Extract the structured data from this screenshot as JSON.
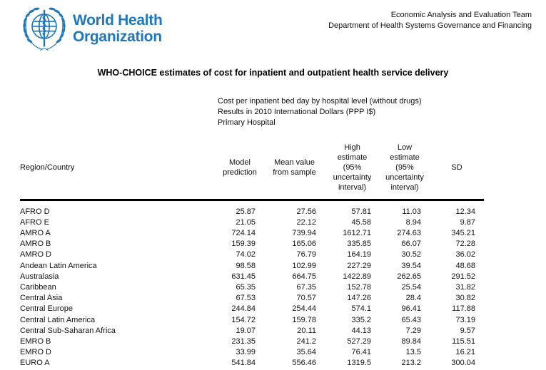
{
  "header": {
    "logo_line1": "World Health",
    "logo_line2": "Organization",
    "team_line1": "Economic Analysis and Evaluation Team",
    "team_line2": "Department of Health Systems Governance and Financing"
  },
  "title": "WHO-CHOICE estimates of cost for inpatient and outpatient health service delivery",
  "subtitle": {
    "line1": "Cost per inpatient bed day by hospital level (without drugs)",
    "line2": "Results in 2010 International Dollars (PPP I$)",
    "line3": "Primary Hospital"
  },
  "table": {
    "columns": {
      "region": "Region/Country",
      "model": "Model\nprediction",
      "mean": "Mean value\nfrom sample",
      "high": "High\nestimate\n(95%\nuncertainty\ninterval)",
      "low": "Low\nestimate\n(95%\nuncertainty\ninterval)",
      "sd": "SD"
    },
    "rows": [
      [
        "AFRO D",
        "25.87",
        "27.56",
        "57.81",
        "11.03",
        "12.34"
      ],
      [
        "AFRO E",
        "21.05",
        "22.12",
        "45.58",
        "8.94",
        "9.87"
      ],
      [
        "AMRO A",
        "724.14",
        "739.94",
        "1612.71",
        "274.63",
        "345.21"
      ],
      [
        "AMRO B",
        "159.39",
        "165.06",
        "335.85",
        "66.07",
        "72.28"
      ],
      [
        "AMRO D",
        "74.02",
        "76.79",
        "164.19",
        "30.52",
        "36.02"
      ],
      [
        "Andean Latin America",
        "98.58",
        "102.99",
        "227.29",
        "39.54",
        "48.68"
      ],
      [
        "Australasia",
        "631.45",
        "664.75",
        "1422.89",
        "262.65",
        "291.52"
      ],
      [
        "Caribbean",
        "65.35",
        "67.35",
        "152.78",
        "25.54",
        "31.82"
      ],
      [
        "Central Asia",
        "67.53",
        "70.57",
        "147.26",
        "28.4",
        "30.82"
      ],
      [
        "Central Europe",
        "244.84",
        "254.44",
        "574.1",
        "96.41",
        "117.88"
      ],
      [
        "Central Latin America",
        "154.72",
        "159.78",
        "335.2",
        "65.43",
        "73.19"
      ],
      [
        "Central Sub-Saharan Africa",
        "19.07",
        "20.11",
        "44.13",
        "7.29",
        "9.57"
      ],
      [
        "EMRO B",
        "231.35",
        "241.2",
        "527.29",
        "89.84",
        "115.51"
      ],
      [
        "EMRO D",
        "33.99",
        "35.64",
        "76.41",
        "13.5",
        "16.21"
      ],
      [
        "EURO A",
        "541.84",
        "556.46",
        "1319.5",
        "213.2",
        "300.04"
      ]
    ]
  },
  "colors": {
    "who_blue": "#1F77BE",
    "text": "#000000",
    "rule": "#000000"
  }
}
